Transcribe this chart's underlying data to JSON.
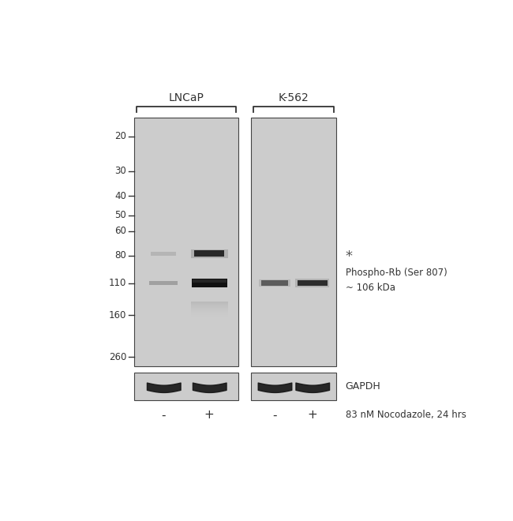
{
  "bg_color": "#ffffff",
  "blot_bg": "#c8c8c8",
  "mw_labels": [
    "260",
    "160",
    "110",
    "80",
    "60",
    "50",
    "40",
    "30",
    "20"
  ],
  "mw_values": [
    260,
    160,
    110,
    80,
    60,
    50,
    40,
    30,
    20
  ],
  "cell_labels": [
    "LNCaP",
    "K-562"
  ],
  "treatment_labels": [
    "-",
    "+",
    "-",
    "+"
  ],
  "annotation_text": "Phospho-Rb (Ser 807)\n~ 106 kDa",
  "gapdh_label": "GAPDH",
  "nocodazole_label": "83 nM Nocodazole, 24 hrs",
  "asterisk": "*",
  "panel_bg": "#cccccc",
  "band_dark": "#111111",
  "band_med": "#555555",
  "band_light": "#999999",
  "tick_color": "#333333",
  "text_color": "#333333"
}
